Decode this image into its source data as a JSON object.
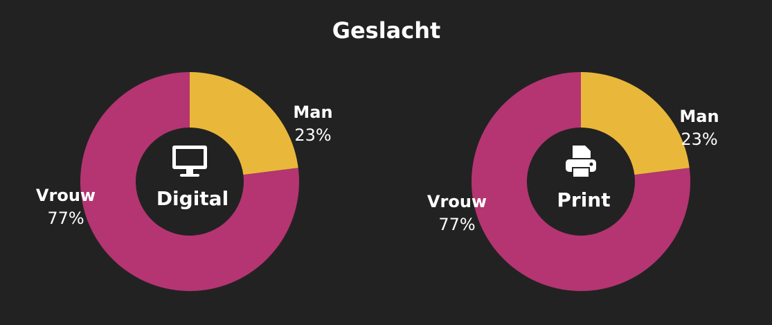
{
  "title": "Geslacht",
  "chart_data": [
    {
      "type": "donut",
      "center_label": "Digital",
      "categories": [
        "Man",
        "Vrouw"
      ],
      "values": [
        23,
        77
      ],
      "value_labels": [
        "23%",
        "77%"
      ],
      "colors": [
        "#e9b83a",
        "#b43572"
      ]
    },
    {
      "type": "donut",
      "center_label": "Print",
      "categories": [
        "Man",
        "Vrouw"
      ],
      "values": [
        23,
        77
      ],
      "value_labels": [
        "23%",
        "77%"
      ],
      "colors": [
        "#e9b83a",
        "#b43572"
      ]
    }
  ]
}
